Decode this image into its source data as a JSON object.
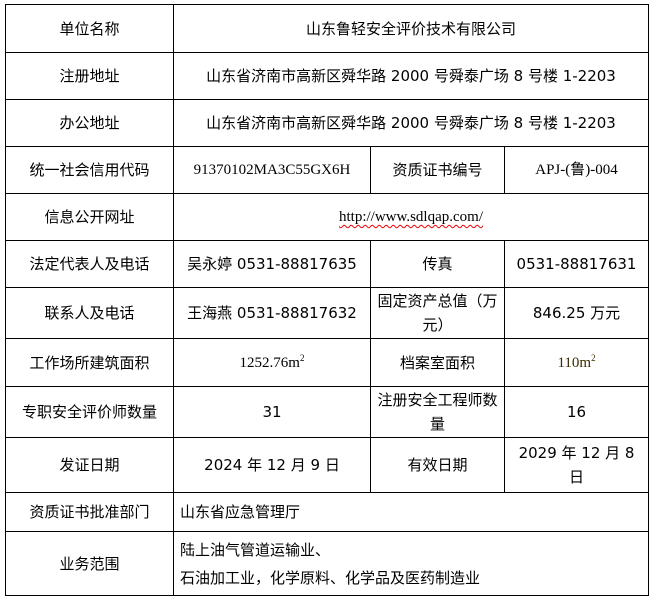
{
  "rows": {
    "company": {
      "label": "单位名称",
      "value": "山东鲁轻安全评价技术有限公司"
    },
    "reg_address": {
      "label": "注册地址",
      "value": "山东省济南市高新区舜华路 2000 号舜泰广场 8 号楼 1-2203"
    },
    "office_address": {
      "label": "办公地址",
      "value": "山东省济南市高新区舜华路 2000 号舜泰广场 8 号楼 1-2203"
    },
    "credit_code": {
      "label": "统一社会信用代码",
      "value": "91370102MA3C55GX6H",
      "label2": "资质证书编号",
      "value2": "APJ-(鲁)-004"
    },
    "website": {
      "label": "信息公开网址",
      "value": "http://www.sdlqap.com/"
    },
    "legal_rep": {
      "label": "法定代表人及电话",
      "value": "吴永婷 0531-88817635",
      "label2": "传真",
      "value2": "0531-88817631"
    },
    "contact": {
      "label": "联系人及电话",
      "value": "王海燕 0531-88817632",
      "label2": "固定资产总值（万元）",
      "value2": "846.25 万元"
    },
    "area": {
      "label": "工作场所建筑面积",
      "value": "1252.76m",
      "value_sup": "2",
      "label2": "档案室面积",
      "value2": "110m",
      "value2_sup": "2"
    },
    "staff": {
      "label": "专职安全评价师数量",
      "value": "31",
      "label2": "注册安全工程师数量",
      "value2": "16"
    },
    "dates": {
      "label": "发证日期",
      "value": "2024 年 12 月 9 日",
      "label2": "有效日期",
      "value2": "2029 年 12 月 8 日"
    },
    "authority": {
      "label": "资质证书批准部门",
      "value": "山东省应急管理厅"
    },
    "scope": {
      "label": "业务范围",
      "line1": "陆上油气管道运输业、",
      "line2": "石油加工业，化学原料、化学品及医药制造业"
    }
  }
}
